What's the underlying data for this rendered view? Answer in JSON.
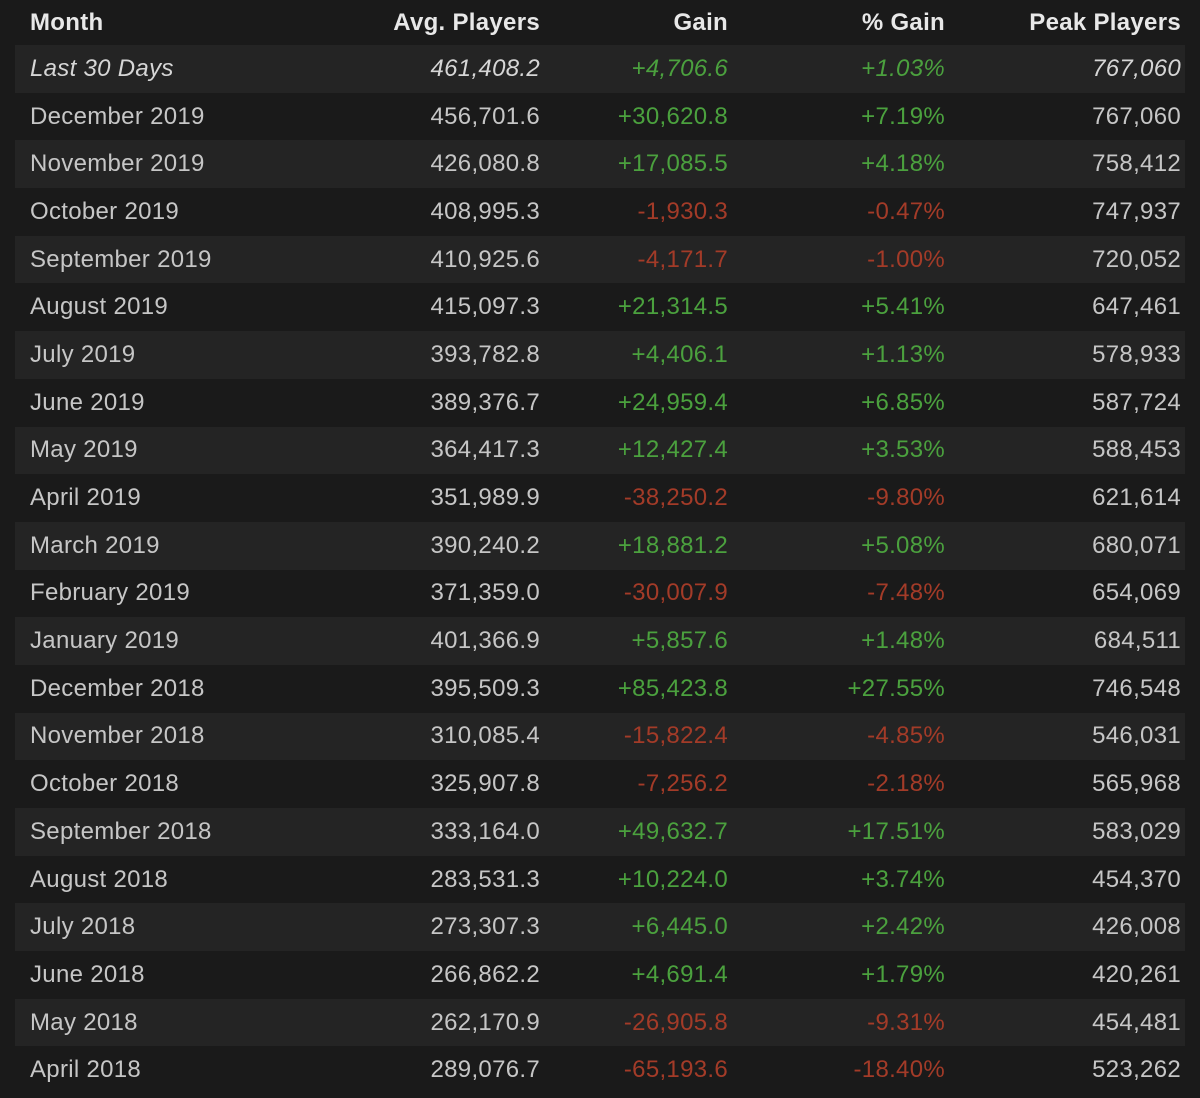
{
  "table": {
    "columns": [
      {
        "label": "Month"
      },
      {
        "label": "Avg. Players"
      },
      {
        "label": "Gain"
      },
      {
        "label": "% Gain"
      },
      {
        "label": "Peak Players"
      }
    ],
    "rows": [
      {
        "month": "Last 30 Days",
        "avg_players": "461,408.2",
        "gain": "+4,706.6",
        "percent_gain": "+1.03%",
        "peak_players": "767,060",
        "trend": "up",
        "current_period": true
      },
      {
        "month": "December 2019",
        "avg_players": "456,701.6",
        "gain": "+30,620.8",
        "percent_gain": "+7.19%",
        "peak_players": "767,060",
        "trend": "up",
        "current_period": false
      },
      {
        "month": "November 2019",
        "avg_players": "426,080.8",
        "gain": "+17,085.5",
        "percent_gain": "+4.18%",
        "peak_players": "758,412",
        "trend": "up",
        "current_period": false
      },
      {
        "month": "October 2019",
        "avg_players": "408,995.3",
        "gain": "-1,930.3",
        "percent_gain": "-0.47%",
        "peak_players": "747,937",
        "trend": "down",
        "current_period": false
      },
      {
        "month": "September 2019",
        "avg_players": "410,925.6",
        "gain": "-4,171.7",
        "percent_gain": "-1.00%",
        "peak_players": "720,052",
        "trend": "down",
        "current_period": false
      },
      {
        "month": "August 2019",
        "avg_players": "415,097.3",
        "gain": "+21,314.5",
        "percent_gain": "+5.41%",
        "peak_players": "647,461",
        "trend": "up",
        "current_period": false
      },
      {
        "month": "July 2019",
        "avg_players": "393,782.8",
        "gain": "+4,406.1",
        "percent_gain": "+1.13%",
        "peak_players": "578,933",
        "trend": "up",
        "current_period": false
      },
      {
        "month": "June 2019",
        "avg_players": "389,376.7",
        "gain": "+24,959.4",
        "percent_gain": "+6.85%",
        "peak_players": "587,724",
        "trend": "up",
        "current_period": false
      },
      {
        "month": "May 2019",
        "avg_players": "364,417.3",
        "gain": "+12,427.4",
        "percent_gain": "+3.53%",
        "peak_players": "588,453",
        "trend": "up",
        "current_period": false
      },
      {
        "month": "April 2019",
        "avg_players": "351,989.9",
        "gain": "-38,250.2",
        "percent_gain": "-9.80%",
        "peak_players": "621,614",
        "trend": "down",
        "current_period": false
      },
      {
        "month": "March 2019",
        "avg_players": "390,240.2",
        "gain": "+18,881.2",
        "percent_gain": "+5.08%",
        "peak_players": "680,071",
        "trend": "up",
        "current_period": false
      },
      {
        "month": "February 2019",
        "avg_players": "371,359.0",
        "gain": "-30,007.9",
        "percent_gain": "-7.48%",
        "peak_players": "654,069",
        "trend": "down",
        "current_period": false
      },
      {
        "month": "January 2019",
        "avg_players": "401,366.9",
        "gain": "+5,857.6",
        "percent_gain": "+1.48%",
        "peak_players": "684,511",
        "trend": "up",
        "current_period": false
      },
      {
        "month": "December 2018",
        "avg_players": "395,509.3",
        "gain": "+85,423.8",
        "percent_gain": "+27.55%",
        "peak_players": "746,548",
        "trend": "up",
        "current_period": false
      },
      {
        "month": "November 2018",
        "avg_players": "310,085.4",
        "gain": "-15,822.4",
        "percent_gain": "-4.85%",
        "peak_players": "546,031",
        "trend": "down",
        "current_period": false
      },
      {
        "month": "October 2018",
        "avg_players": "325,907.8",
        "gain": "-7,256.2",
        "percent_gain": "-2.18%",
        "peak_players": "565,968",
        "trend": "down",
        "current_period": false
      },
      {
        "month": "September 2018",
        "avg_players": "333,164.0",
        "gain": "+49,632.7",
        "percent_gain": "+17.51%",
        "peak_players": "583,029",
        "trend": "up",
        "current_period": false
      },
      {
        "month": "August 2018",
        "avg_players": "283,531.3",
        "gain": "+10,224.0",
        "percent_gain": "+3.74%",
        "peak_players": "454,370",
        "trend": "up",
        "current_period": false
      },
      {
        "month": "July 2018",
        "avg_players": "273,307.3",
        "gain": "+6,445.0",
        "percent_gain": "+2.42%",
        "peak_players": "426,008",
        "trend": "up",
        "current_period": false
      },
      {
        "month": "June 2018",
        "avg_players": "266,862.2",
        "gain": "+4,691.4",
        "percent_gain": "+1.79%",
        "peak_players": "420,261",
        "trend": "up",
        "current_period": false
      },
      {
        "month": "May 2018",
        "avg_players": "262,170.9",
        "gain": "-26,905.8",
        "percent_gain": "-9.31%",
        "peak_players": "454,481",
        "trend": "down",
        "current_period": false
      },
      {
        "month": "April 2018",
        "avg_players": "289,076.7",
        "gain": "-65,193.6",
        "percent_gain": "-18.40%",
        "peak_players": "523,262",
        "trend": "down",
        "current_period": false
      }
    ]
  },
  "colors": {
    "background": "#1a1a1a",
    "row_stripe": "#242424",
    "text": "#c6c6c6",
    "header_text": "#e8e8e8",
    "positive_gain": "#4ba13e",
    "negative_gain": "#a33b28"
  }
}
